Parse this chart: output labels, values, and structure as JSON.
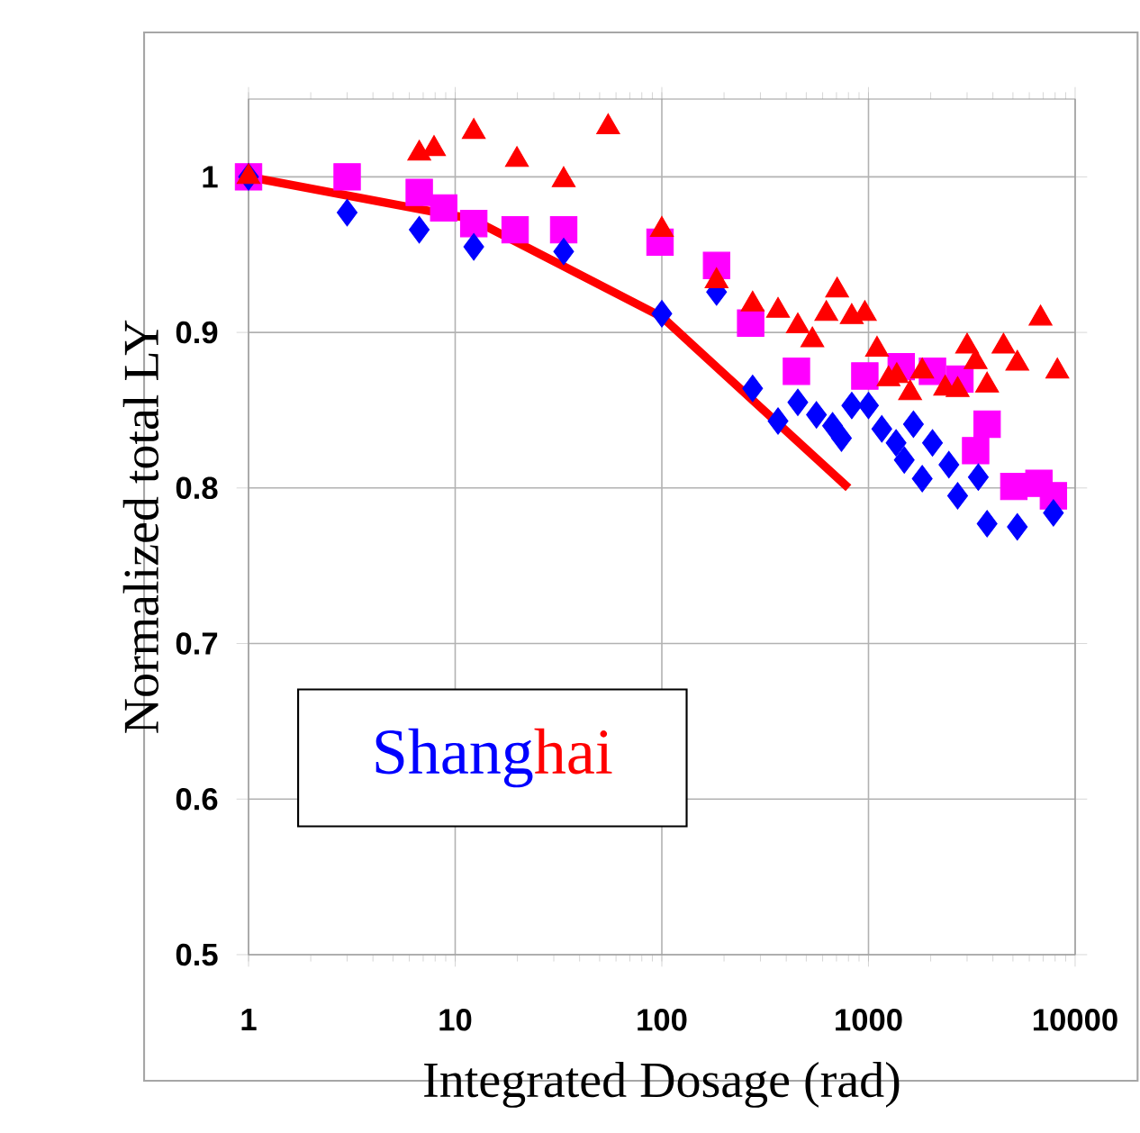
{
  "chart_data": {
    "type": "scatter",
    "xlabel": "Integrated Dosage (rad)",
    "ylabel": "Normalized total LY",
    "log": "x",
    "grid": true,
    "legend": "left",
    "xlim": [
      1,
      10000
    ],
    "ylim": [
      0.5,
      1.05
    ],
    "xticks": [
      1,
      10,
      100,
      1000,
      10000
    ],
    "yticks": [
      0.5,
      0.6,
      0.7,
      0.8,
      0.9,
      1
    ],
    "series": [
      {
        "color": "#ff00ff",
        "marker": "square",
        "x": [
          1,
          3,
          6.7,
          8.8,
          12.3,
          19.5,
          33.5,
          98,
          184,
          269,
          448,
          960,
          1440,
          2040,
          2770,
          3750,
          3300,
          5050,
          6680,
          7850
        ],
        "values": [
          1.0,
          1.0,
          0.99,
          0.98,
          0.97,
          0.966,
          0.966,
          0.958,
          0.943,
          0.906,
          0.875,
          0.872,
          0.878,
          0.875,
          0.87,
          0.841,
          0.824,
          0.801,
          0.803,
          0.795
        ]
      },
      {
        "name": "Shang",
        "color": "#0000ff",
        "marker": "diamond",
        "x": [
          1,
          3,
          6.7,
          12.3,
          33.5,
          100,
          184,
          275,
          365,
          455,
          560,
          670,
          740,
          830,
          1000,
          1160,
          1360,
          1490,
          1820,
          1650,
          2040,
          2450,
          2700,
          3400,
          3750,
          5250,
          7850
        ],
        "values": [
          1.0,
          0.977,
          0.966,
          0.955,
          0.952,
          0.912,
          0.926,
          0.864,
          0.843,
          0.855,
          0.847,
          0.84,
          0.832,
          0.853,
          0.853,
          0.838,
          0.829,
          0.818,
          0.806,
          0.841,
          0.829,
          0.815,
          0.795,
          0.807,
          0.777,
          0.775,
          0.784
        ]
      },
      {
        "name": "hai",
        "color": "#ff0000",
        "marker": "triangle",
        "x": [
          1,
          6.7,
          7.9,
          12.3,
          19.9,
          33.5,
          55,
          100,
          184,
          275,
          365,
          455,
          535,
          625,
          705,
          830,
          960,
          1100,
          1250,
          1370,
          1590,
          1820,
          2350,
          2700,
          3000,
          3300,
          3750,
          4500,
          5250,
          6800,
          8200
        ],
        "values": [
          1.0,
          1.015,
          1.018,
          1.029,
          1.011,
          0.998,
          1.032,
          0.966,
          0.933,
          0.918,
          0.914,
          0.904,
          0.895,
          0.912,
          0.927,
          0.91,
          0.912,
          0.889,
          0.87,
          0.872,
          0.861,
          0.875,
          0.864,
          0.863,
          0.891,
          0.881,
          0.866,
          0.891,
          0.88,
          0.909,
          0.875
        ]
      },
      {
        "type": "line",
        "color": "#ff0000",
        "marker": "none",
        "line_style": "solid",
        "x": [
          1,
          12,
          100,
          800
        ],
        "values": [
          1.0,
          0.973,
          0.91,
          0.8
        ]
      }
    ]
  }
}
